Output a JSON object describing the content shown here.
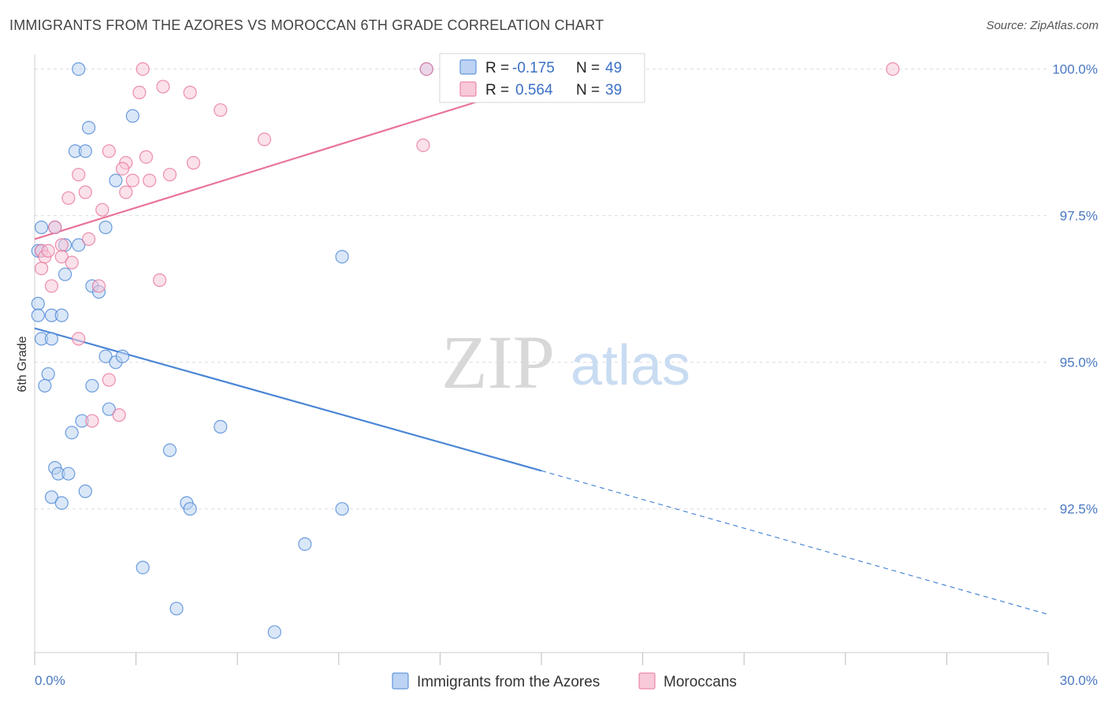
{
  "title": "IMMIGRANTS FROM THE AZORES VS MOROCCAN 6TH GRADE CORRELATION CHART",
  "source": "Source: ZipAtlas.com",
  "watermark": {
    "zip": "ZIP",
    "atlas": "atlas"
  },
  "colors": {
    "blue": "#4a86d6",
    "blue_fill": "#bcd3f3",
    "pink": "#e8749b",
    "pink_fill": "#f8c9d8",
    "grid": "#dddddd",
    "tick_text": "#4a78c2"
  },
  "stats_box": [
    {
      "r_label": "R =",
      "r_value": "-0.175",
      "n_label": "N =",
      "n_value": "49",
      "color": "blue"
    },
    {
      "r_label": "R =",
      "r_value": "0.564",
      "n_label": "N =",
      "n_value": "39",
      "color": "pink"
    }
  ],
  "chart_data": {
    "type": "scatter",
    "title": "IMMIGRANTS FROM THE AZORES VS MOROCCAN 6TH GRADE CORRELATION CHART",
    "xlabel": "",
    "ylabel": "6th Grade",
    "xlim": [
      0,
      30
    ],
    "ylim": [
      90.05,
      100.25
    ],
    "x_tick_labels": [
      {
        "value": 0,
        "label": "0.0%"
      },
      {
        "value": 30,
        "label": "30.0%"
      }
    ],
    "y_tick_labels": [
      {
        "value": 100,
        "label": "100.0%"
      },
      {
        "value": 97.5,
        "label": "97.5%"
      },
      {
        "value": 95,
        "label": "95.0%"
      },
      {
        "value": 92.5,
        "label": "92.5%"
      }
    ],
    "grid": true,
    "legend_position": "bottom-center",
    "series": [
      {
        "name": "Immigrants from the Azores",
        "color": "blue",
        "trend": {
          "x0": 0,
          "y0": 95.58,
          "x1": 15,
          "y1": 93.15,
          "x_dash_end": 30,
          "y_dash_end": 90.7
        },
        "points": [
          [
            1.3,
            100.0
          ],
          [
            11.6,
            100.0
          ],
          [
            1.6,
            99.0
          ],
          [
            2.9,
            99.2
          ],
          [
            1.2,
            98.6
          ],
          [
            1.5,
            98.6
          ],
          [
            2.4,
            98.1
          ],
          [
            0.2,
            97.3
          ],
          [
            0.6,
            97.3
          ],
          [
            2.1,
            97.3
          ],
          [
            0.9,
            97.0
          ],
          [
            1.3,
            97.0
          ],
          [
            0.1,
            96.9
          ],
          [
            0.2,
            96.9
          ],
          [
            9.1,
            96.8
          ],
          [
            0.9,
            96.5
          ],
          [
            1.7,
            96.3
          ],
          [
            1.9,
            96.2
          ],
          [
            0.1,
            96.0
          ],
          [
            0.1,
            95.8
          ],
          [
            0.5,
            95.8
          ],
          [
            0.8,
            95.8
          ],
          [
            0.2,
            95.4
          ],
          [
            0.5,
            95.4
          ],
          [
            2.1,
            95.1
          ],
          [
            2.4,
            95.0
          ],
          [
            2.6,
            95.1
          ],
          [
            0.4,
            94.8
          ],
          [
            0.3,
            94.6
          ],
          [
            1.7,
            94.6
          ],
          [
            2.2,
            94.2
          ],
          [
            1.4,
            94.0
          ],
          [
            1.1,
            93.8
          ],
          [
            5.5,
            93.9
          ],
          [
            4.0,
            93.5
          ],
          [
            0.6,
            93.2
          ],
          [
            0.7,
            93.1
          ],
          [
            1.0,
            93.1
          ],
          [
            0.5,
            92.7
          ],
          [
            0.8,
            92.6
          ],
          [
            1.5,
            92.8
          ],
          [
            4.5,
            92.6
          ],
          [
            4.6,
            92.5
          ],
          [
            9.1,
            92.5
          ],
          [
            8.0,
            91.9
          ],
          [
            3.2,
            91.5
          ],
          [
            4.2,
            90.8
          ],
          [
            7.1,
            90.4
          ],
          [
            13.5,
            100.0
          ]
        ]
      },
      {
        "name": "Moroccans",
        "color": "pink",
        "trend": {
          "x0": 0,
          "y0": 97.1,
          "x1": 16.5,
          "y1": 100.05
        },
        "points": [
          [
            3.2,
            100.0
          ],
          [
            11.6,
            100.0
          ],
          [
            16.2,
            100.0
          ],
          [
            25.4,
            100.0
          ],
          [
            3.1,
            99.6
          ],
          [
            3.8,
            99.7
          ],
          [
            4.6,
            99.6
          ],
          [
            5.5,
            99.3
          ],
          [
            6.8,
            98.8
          ],
          [
            11.5,
            98.7
          ],
          [
            2.2,
            98.6
          ],
          [
            3.3,
            98.5
          ],
          [
            2.7,
            98.4
          ],
          [
            2.6,
            98.3
          ],
          [
            4.7,
            98.4
          ],
          [
            1.3,
            98.2
          ],
          [
            4.0,
            98.2
          ],
          [
            2.9,
            98.1
          ],
          [
            3.4,
            98.1
          ],
          [
            1.5,
            97.9
          ],
          [
            2.7,
            97.9
          ],
          [
            1.0,
            97.8
          ],
          [
            2.0,
            97.6
          ],
          [
            0.6,
            97.3
          ],
          [
            1.6,
            97.1
          ],
          [
            0.8,
            97.0
          ],
          [
            0.2,
            96.9
          ],
          [
            0.3,
            96.8
          ],
          [
            0.4,
            96.9
          ],
          [
            0.8,
            96.8
          ],
          [
            1.1,
            96.7
          ],
          [
            0.2,
            96.6
          ],
          [
            3.7,
            96.4
          ],
          [
            0.5,
            96.3
          ],
          [
            1.9,
            96.3
          ],
          [
            1.3,
            95.4
          ],
          [
            2.2,
            94.7
          ],
          [
            1.7,
            94.0
          ],
          [
            2.5,
            94.1
          ]
        ]
      }
    ]
  }
}
